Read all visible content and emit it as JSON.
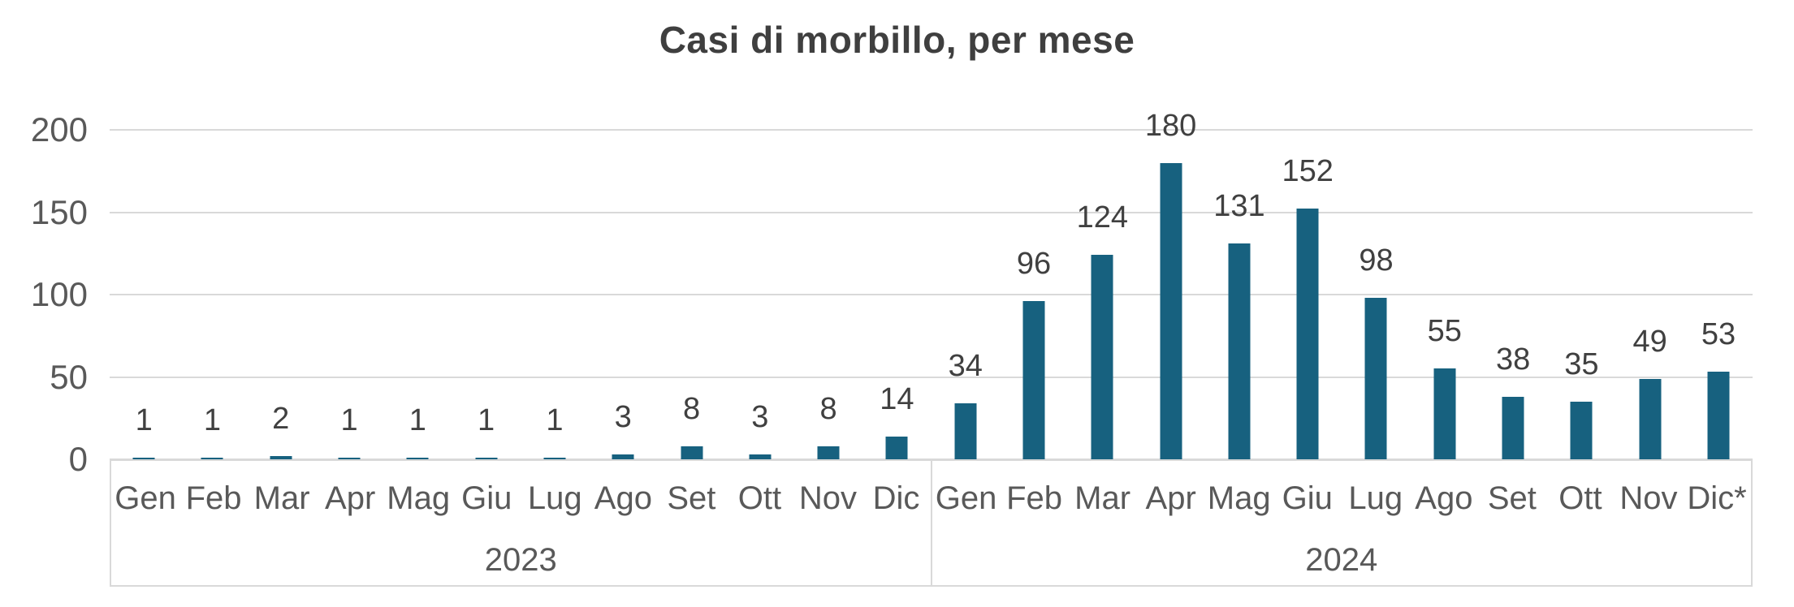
{
  "chart_data": {
    "type": "bar",
    "title": "Casi di morbillo, per mese",
    "xlabel": "",
    "ylabel": "",
    "ylim": [
      0,
      200
    ],
    "yticks": [
      0,
      50,
      100,
      150,
      200
    ],
    "grid": true,
    "legend": false,
    "categories": [
      "Gen",
      "Feb",
      "Mar",
      "Apr",
      "Mag",
      "Giu",
      "Lug",
      "Ago",
      "Set",
      "Ott",
      "Nov",
      "Dic",
      "Gen",
      "Feb",
      "Mar",
      "Apr",
      "Mag",
      "Giu",
      "Lug",
      "Ago",
      "Set",
      "Ott",
      "Nov",
      "Dic*"
    ],
    "values": [
      1,
      1,
      2,
      1,
      1,
      1,
      1,
      3,
      8,
      3,
      8,
      14,
      34,
      96,
      124,
      180,
      131,
      152,
      98,
      55,
      38,
      35,
      49,
      53
    ],
    "groups": [
      {
        "label": "2023",
        "months": [
          "Gen",
          "Feb",
          "Mar",
          "Apr",
          "Mag",
          "Giu",
          "Lug",
          "Ago",
          "Set",
          "Ott",
          "Nov",
          "Dic"
        ],
        "values": [
          1,
          1,
          2,
          1,
          1,
          1,
          1,
          3,
          8,
          3,
          8,
          14
        ]
      },
      {
        "label": "2024",
        "months": [
          "Gen",
          "Feb",
          "Mar",
          "Apr",
          "Mag",
          "Giu",
          "Lug",
          "Ago",
          "Set",
          "Ott",
          "Nov",
          "Dic*"
        ],
        "values": [
          34,
          96,
          124,
          180,
          131,
          152,
          98,
          55,
          38,
          35,
          49,
          53
        ]
      }
    ]
  },
  "colors": {
    "bar": "#17617F",
    "title_text": "#3F3F3F",
    "data_label_text": "#404040",
    "axis_text": "#595959",
    "gridline": "#D9D9D9",
    "background": "#FFFFFF"
  }
}
